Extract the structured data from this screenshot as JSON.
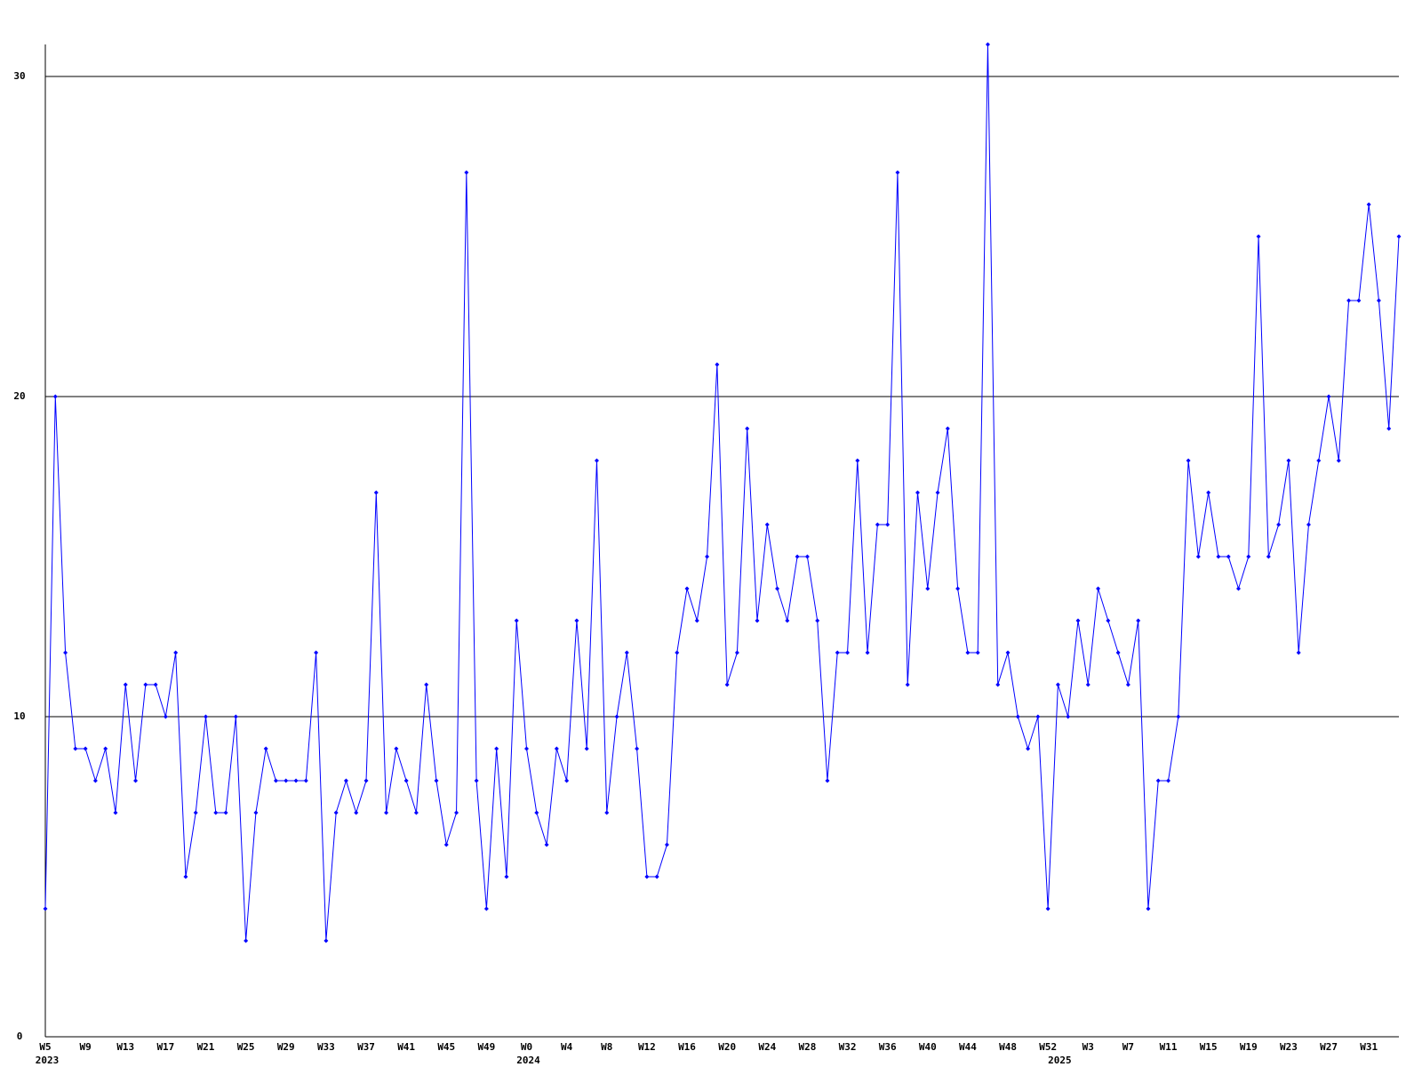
{
  "chart_data": {
    "type": "line",
    "categories": [
      "W5",
      null,
      null,
      null,
      "W9",
      null,
      null,
      null,
      "W13",
      null,
      null,
      null,
      "W17",
      null,
      null,
      null,
      "W21",
      null,
      null,
      null,
      "W25",
      null,
      null,
      null,
      "W29",
      null,
      null,
      null,
      "W33",
      null,
      null,
      null,
      "W37",
      null,
      null,
      null,
      "W41",
      null,
      null,
      null,
      "W45",
      null,
      null,
      null,
      "W49",
      null,
      null,
      null,
      "W0",
      null,
      null,
      null,
      "W4",
      null,
      null,
      null,
      "W8",
      null,
      null,
      null,
      "W12",
      null,
      null,
      null,
      "W16",
      null,
      null,
      null,
      "W20",
      null,
      null,
      null,
      "W24",
      null,
      null,
      null,
      "W28",
      null,
      null,
      null,
      "W32",
      null,
      null,
      null,
      "W36",
      null,
      null,
      null,
      "W40",
      null,
      null,
      null,
      "W44",
      null,
      null,
      null,
      "W48",
      null,
      null,
      null,
      "W52",
      null,
      null,
      null,
      "W3",
      null,
      null,
      null,
      "W7",
      null,
      null,
      null,
      "W11",
      null,
      null,
      null,
      "W15",
      null,
      null,
      null,
      "W19",
      null,
      null,
      null,
      "W23",
      null,
      null,
      null,
      "W27",
      null,
      null,
      null,
      "W31",
      null,
      null,
      null
    ],
    "year_categories": [
      "2023",
      null,
      null,
      null,
      null,
      null,
      null,
      null,
      null,
      null,
      null,
      null,
      null,
      null,
      null,
      null,
      null,
      null,
      null,
      null,
      null,
      null,
      null,
      null,
      null,
      null,
      null,
      null,
      null,
      null,
      null,
      null,
      null,
      null,
      null,
      null,
      null,
      null,
      null,
      null,
      null,
      null,
      null,
      null,
      null,
      null,
      null,
      null,
      "2024",
      null,
      null,
      null,
      null,
      null,
      null,
      null,
      null,
      null,
      null,
      null,
      null,
      null,
      null,
      null,
      null,
      null,
      null,
      null,
      null,
      null,
      null,
      null,
      null,
      null,
      null,
      null,
      null,
      null,
      null,
      null,
      null,
      null,
      null,
      null,
      null,
      null,
      null,
      null,
      null,
      null,
      null,
      null,
      null,
      null,
      null,
      null,
      null,
      null,
      null,
      null,
      null,
      "2025",
      null,
      null,
      null,
      null,
      null,
      null,
      null,
      null,
      null,
      null,
      null,
      null,
      null,
      null,
      null,
      null,
      null,
      null,
      null,
      null,
      null,
      null,
      null,
      null,
      null,
      null,
      null,
      null,
      null,
      null,
      null,
      null,
      null,
      null
    ],
    "values": [
      4,
      20,
      12,
      9,
      9,
      8,
      9,
      7,
      11,
      8,
      11,
      11,
      10,
      12,
      5,
      7,
      10,
      7,
      7,
      10,
      3,
      7,
      9,
      8,
      8,
      8,
      8,
      12,
      3,
      7,
      8,
      7,
      8,
      17,
      7,
      9,
      8,
      7,
      11,
      8,
      6,
      7,
      27,
      8,
      4,
      9,
      5,
      13,
      9,
      7,
      6,
      9,
      8,
      13,
      9,
      18,
      7,
      10,
      12,
      9,
      5,
      5,
      6,
      12,
      14,
      13,
      15,
      21,
      11,
      12,
      19,
      13,
      16,
      14,
      13,
      15,
      15,
      13,
      8,
      12,
      12,
      18,
      12,
      16,
      16,
      27,
      11,
      17,
      14,
      17,
      19,
      14,
      12,
      12,
      31,
      11,
      12,
      10,
      9,
      10,
      4,
      11,
      10,
      13,
      11,
      14,
      13,
      12,
      11,
      13,
      4,
      8,
      8,
      10,
      18,
      15,
      17,
      15,
      15,
      14,
      15,
      25,
      15,
      16,
      18,
      12,
      16,
      18,
      20,
      18,
      23,
      23,
      26,
      23,
      19,
      25
    ],
    "color": "#0000ff",
    "ylim": [
      0,
      31
    ],
    "yticks": [
      0,
      10,
      20,
      30
    ],
    "grid": true
  }
}
